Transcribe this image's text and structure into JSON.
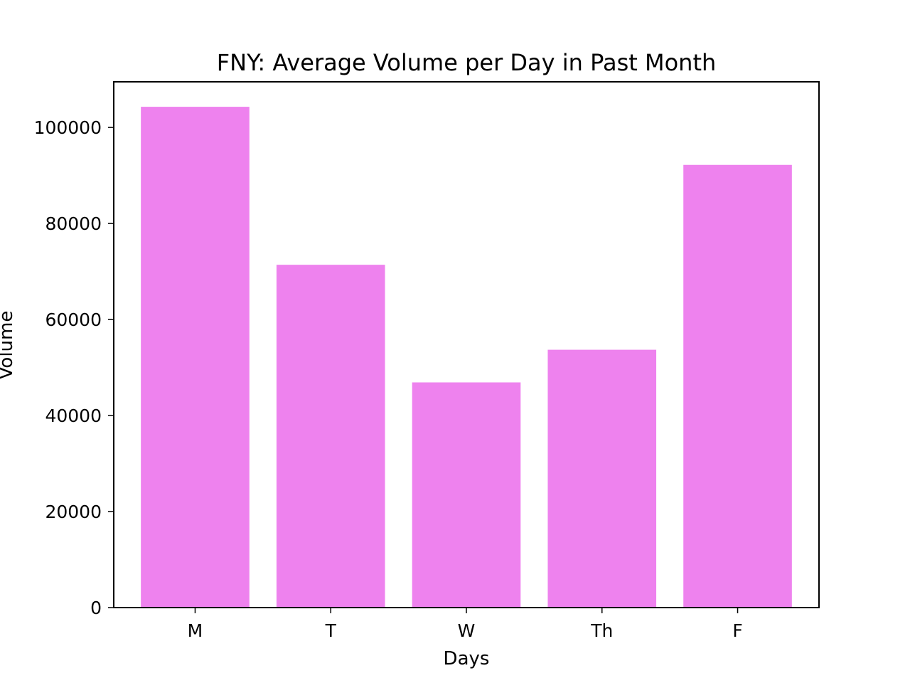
{
  "chart_data": {
    "type": "bar",
    "title": "FNY: Average Volume per Day in Past Month",
    "xlabel": "Days",
    "ylabel": "Volume",
    "categories": [
      "M",
      "T",
      "W",
      "Th",
      "F"
    ],
    "values": [
      104300,
      71400,
      46900,
      53700,
      92200
    ],
    "ylim": [
      0,
      109500
    ],
    "yticks": [
      0,
      20000,
      40000,
      60000,
      80000,
      100000
    ],
    "ytick_labels": [
      "0",
      "20000",
      "40000",
      "60000",
      "80000",
      "100000"
    ],
    "bar_color": "#ee82ee",
    "grid": false,
    "legend": "none"
  }
}
